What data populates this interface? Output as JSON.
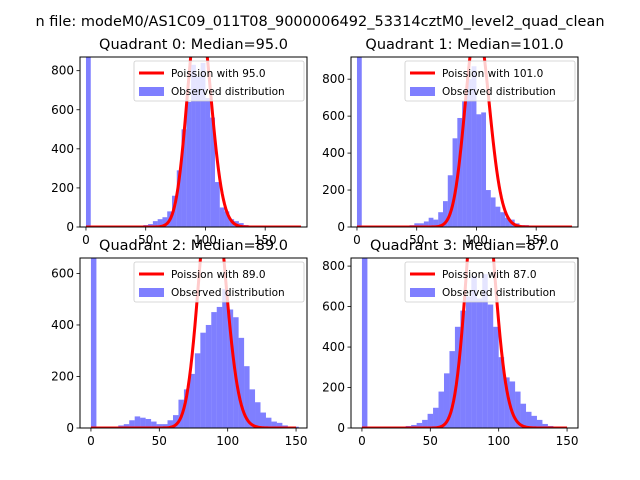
{
  "figure": {
    "suptitle": "n file: modeM0/AS1C09_011T08_9000006492_53314cztM0_level2_quad_clean",
    "colors": {
      "hist": "#0000ff",
      "hist_alpha": 0.5,
      "curve": "#ff0000"
    }
  },
  "chart_data": [
    {
      "type": "bar",
      "title": "Quadrant 0: Median=95.0",
      "median": 95.0,
      "xlim": [
        -5,
        185
      ],
      "ylim": [
        0,
        870
      ],
      "xticks": [
        0,
        50,
        100,
        150
      ],
      "yticks": [
        0,
        200,
        400,
        600,
        800
      ],
      "bin_edges": [
        0,
        4,
        8,
        12,
        16,
        20,
        24,
        28,
        32,
        36,
        40,
        44,
        48,
        52,
        56,
        60,
        64,
        68,
        72,
        76,
        80,
        84,
        88,
        92,
        96,
        100,
        104,
        108,
        112,
        116,
        120,
        124,
        128,
        132,
        136,
        140,
        144,
        148,
        152,
        156,
        160
      ],
      "counts": [
        870,
        0,
        0,
        0,
        0,
        0,
        0,
        0,
        0,
        0,
        0,
        0,
        10,
        15,
        30,
        40,
        50,
        80,
        160,
        290,
        500,
        640,
        830,
        770,
        840,
        660,
        560,
        230,
        100,
        80,
        40,
        30,
        20,
        10,
        0,
        0,
        0,
        0,
        0,
        0
      ],
      "curve_range": [
        0,
        180
      ],
      "legend": {
        "curve": "Poission with 95.0",
        "hist": "Observed distribution"
      }
    },
    {
      "type": "bar",
      "title": "Quadrant 1: Median=101.0",
      "median": 101.0,
      "xlim": [
        -5,
        185
      ],
      "ylim": [
        0,
        920
      ],
      "xticks": [
        0,
        50,
        100,
        150
      ],
      "yticks": [
        0,
        200,
        400,
        600,
        800
      ],
      "bin_edges": [
        0,
        4,
        8,
        12,
        16,
        20,
        24,
        28,
        32,
        36,
        40,
        44,
        48,
        52,
        56,
        60,
        64,
        68,
        72,
        76,
        80,
        84,
        88,
        92,
        96,
        100,
        104,
        108,
        112,
        116,
        120,
        124,
        128,
        132,
        136,
        140,
        144,
        148,
        152,
        156,
        160
      ],
      "counts": [
        920,
        0,
        0,
        0,
        0,
        0,
        0,
        0,
        0,
        0,
        0,
        10,
        20,
        20,
        30,
        50,
        40,
        80,
        140,
        280,
        480,
        590,
        680,
        800,
        870,
        610,
        620,
        200,
        160,
        110,
        80,
        50,
        40,
        20,
        10,
        10,
        0,
        0,
        0,
        0
      ],
      "curve_range": [
        0,
        180
      ],
      "legend": {
        "curve": "Poission with 101.0",
        "hist": "Observed distribution"
      }
    },
    {
      "type": "bar",
      "title": "Quadrant 2: Median=89.0",
      "median": 89.0,
      "xlim": [
        -8,
        158
      ],
      "ylim": [
        0,
        660
      ],
      "xticks": [
        0,
        50,
        100,
        150
      ],
      "yticks": [
        0,
        200,
        400,
        600
      ],
      "bin_edges": [
        0,
        4,
        8,
        12,
        16,
        20,
        24,
        28,
        32,
        36,
        40,
        44,
        48,
        52,
        56,
        60,
        64,
        68,
        72,
        76,
        80,
        84,
        88,
        92,
        96,
        100,
        104,
        108,
        112,
        116,
        120,
        124,
        128,
        132,
        136,
        140,
        144,
        148,
        152
      ],
      "counts": [
        660,
        0,
        0,
        5,
        5,
        10,
        15,
        30,
        45,
        40,
        35,
        25,
        15,
        15,
        30,
        50,
        110,
        150,
        210,
        290,
        370,
        400,
        450,
        470,
        540,
        460,
        430,
        350,
        240,
        150,
        100,
        60,
        40,
        25,
        20,
        10,
        5,
        5
      ],
      "curve_range": [
        0,
        150
      ],
      "legend": {
        "curve": "Poission with 89.0",
        "hist": "Observed distribution"
      }
    },
    {
      "type": "bar",
      "title": "Quadrant 3: Median=87.0",
      "median": 87.0,
      "xlim": [
        -8,
        158
      ],
      "ylim": [
        0,
        840
      ],
      "xticks": [
        0,
        50,
        100,
        150
      ],
      "yticks": [
        0,
        200,
        400,
        600,
        800
      ],
      "bin_edges": [
        0,
        4,
        8,
        12,
        16,
        20,
        24,
        28,
        32,
        36,
        40,
        44,
        48,
        52,
        56,
        60,
        64,
        68,
        72,
        76,
        80,
        84,
        88,
        92,
        96,
        100,
        104,
        108,
        112,
        116,
        120,
        124,
        128,
        132,
        136,
        140,
        144,
        148,
        152
      ],
      "counts": [
        840,
        0,
        0,
        0,
        0,
        0,
        5,
        5,
        10,
        15,
        25,
        40,
        70,
        100,
        180,
        270,
        380,
        500,
        580,
        650,
        750,
        640,
        760,
        610,
        500,
        350,
        250,
        230,
        180,
        120,
        80,
        60,
        40,
        20,
        10,
        5,
        5,
        0
      ],
      "curve_range": [
        0,
        150
      ],
      "legend": {
        "curve": "Poission with 87.0",
        "hist": "Observed distribution"
      }
    }
  ]
}
